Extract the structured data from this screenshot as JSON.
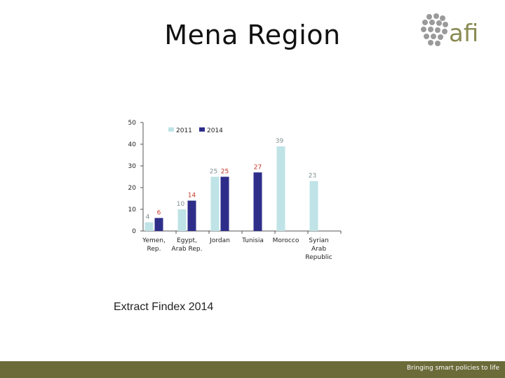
{
  "slide": {
    "title": "Mena Region",
    "logo_text": "afi",
    "caption": "Extract Findex 2014",
    "footer": "Bringing smart policies to life"
  },
  "colors": {
    "series_2011": "#bfe3e6",
    "series_2014": "#2e2e8a",
    "label_2011": "#7f8f90",
    "label_2014": "#c0392b",
    "footer": "#6b6b3a",
    "logo": "#8a8a52"
  },
  "chart_data": {
    "type": "bar",
    "title": "",
    "xlabel": "",
    "ylabel": "",
    "ylim": [
      0,
      50
    ],
    "yticks": [
      0,
      10,
      20,
      30,
      40,
      50
    ],
    "legend_position": "top-left",
    "categories": [
      [
        "Yemen,",
        "Rep."
      ],
      [
        "Egypt,",
        "Arab Rep."
      ],
      [
        "Jordan"
      ],
      [
        "Tunisia"
      ],
      [
        "Morocco"
      ],
      [
        "Syrian",
        "Arab",
        "Republic"
      ]
    ],
    "series": [
      {
        "name": "2011",
        "values": [
          4,
          10,
          25,
          null,
          39,
          23
        ]
      },
      {
        "name": "2014",
        "values": [
          6,
          14,
          25,
          27,
          null,
          null
        ]
      }
    ]
  }
}
